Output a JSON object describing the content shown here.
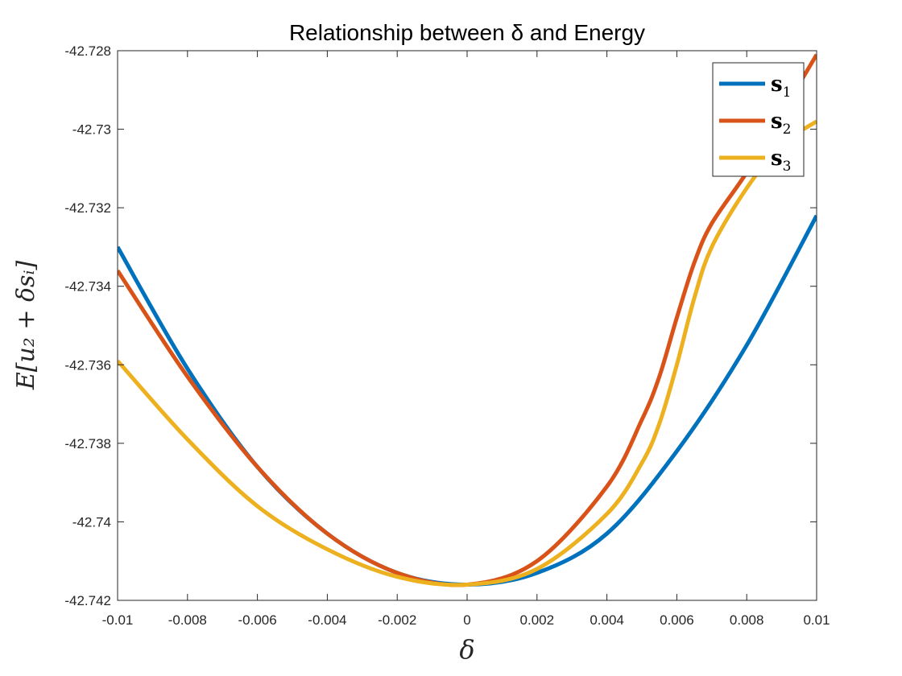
{
  "chart_data": {
    "type": "line",
    "title": "Relationship between δ and Energy",
    "xlabel": "δ",
    "ylabel": "E[u₂ + δsᵢ]",
    "xlim": [
      -0.01,
      0.01
    ],
    "ylim": [
      -42.742,
      -42.728
    ],
    "x_ticks": [
      -0.01,
      -0.008,
      -0.006,
      -0.004,
      -0.002,
      0,
      0.002,
      0.004,
      0.006,
      0.008,
      0.01
    ],
    "x_tick_labels": [
      "-0.01",
      "-0.008",
      "-0.006",
      "-0.004",
      "-0.002",
      "0",
      "0.002",
      "0.004",
      "0.006",
      "0.008",
      "0.01"
    ],
    "y_ticks": [
      -42.742,
      -42.74,
      -42.738,
      -42.736,
      -42.734,
      -42.732,
      -42.73,
      -42.728
    ],
    "y_tick_labels": [
      "-42.742",
      "-42.74",
      "-42.738",
      "-42.736",
      "-42.734",
      "-42.732",
      "-42.73",
      "-42.728"
    ],
    "grid": false,
    "legend_position": "top-right",
    "series": [
      {
        "name": "s1",
        "legend_main": "s",
        "legend_sub": "1",
        "color": "#0072BD",
        "x": [
          -0.01,
          -0.008,
          -0.006,
          -0.004,
          -0.002,
          0,
          0.002,
          0.004,
          0.006,
          0.008,
          0.01
        ],
        "y": [
          -42.733,
          -42.7361,
          -42.7386,
          -42.7403,
          -42.7413,
          -42.7416,
          -42.7413,
          -42.7403,
          -42.7382,
          -42.7355,
          -42.7322
        ]
      },
      {
        "name": "s2",
        "legend_main": "s",
        "legend_sub": "2",
        "color": "#D95319",
        "x": [
          -0.01,
          -0.008,
          -0.006,
          -0.004,
          -0.002,
          0,
          0.002,
          0.004,
          0.005,
          0.0055,
          0.006,
          0.0065,
          0.007,
          0.008,
          0.009,
          0.01
        ],
        "y": [
          -42.7336,
          -42.7363,
          -42.7386,
          -42.7403,
          -42.7413,
          -42.7416,
          -42.741,
          -42.7391,
          -42.7374,
          -42.7363,
          -42.7348,
          -42.7334,
          -42.7324,
          -42.7311,
          -42.7296,
          -42.7281
        ]
      },
      {
        "name": "s3",
        "legend_main": "s",
        "legend_sub": "3",
        "color": "#EDB120",
        "x": [
          -0.01,
          -0.008,
          -0.006,
          -0.004,
          -0.002,
          0,
          0.002,
          0.004,
          0.005,
          0.0055,
          0.006,
          0.0065,
          0.007,
          0.008,
          0.009,
          0.01
        ],
        "y": [
          -42.7359,
          -42.7379,
          -42.7396,
          -42.7407,
          -42.7414,
          -42.7416,
          -42.7412,
          -42.7398,
          -42.7385,
          -42.7375,
          -42.736,
          -42.7343,
          -42.733,
          -42.7315,
          -42.7304,
          -42.7298
        ]
      }
    ]
  }
}
